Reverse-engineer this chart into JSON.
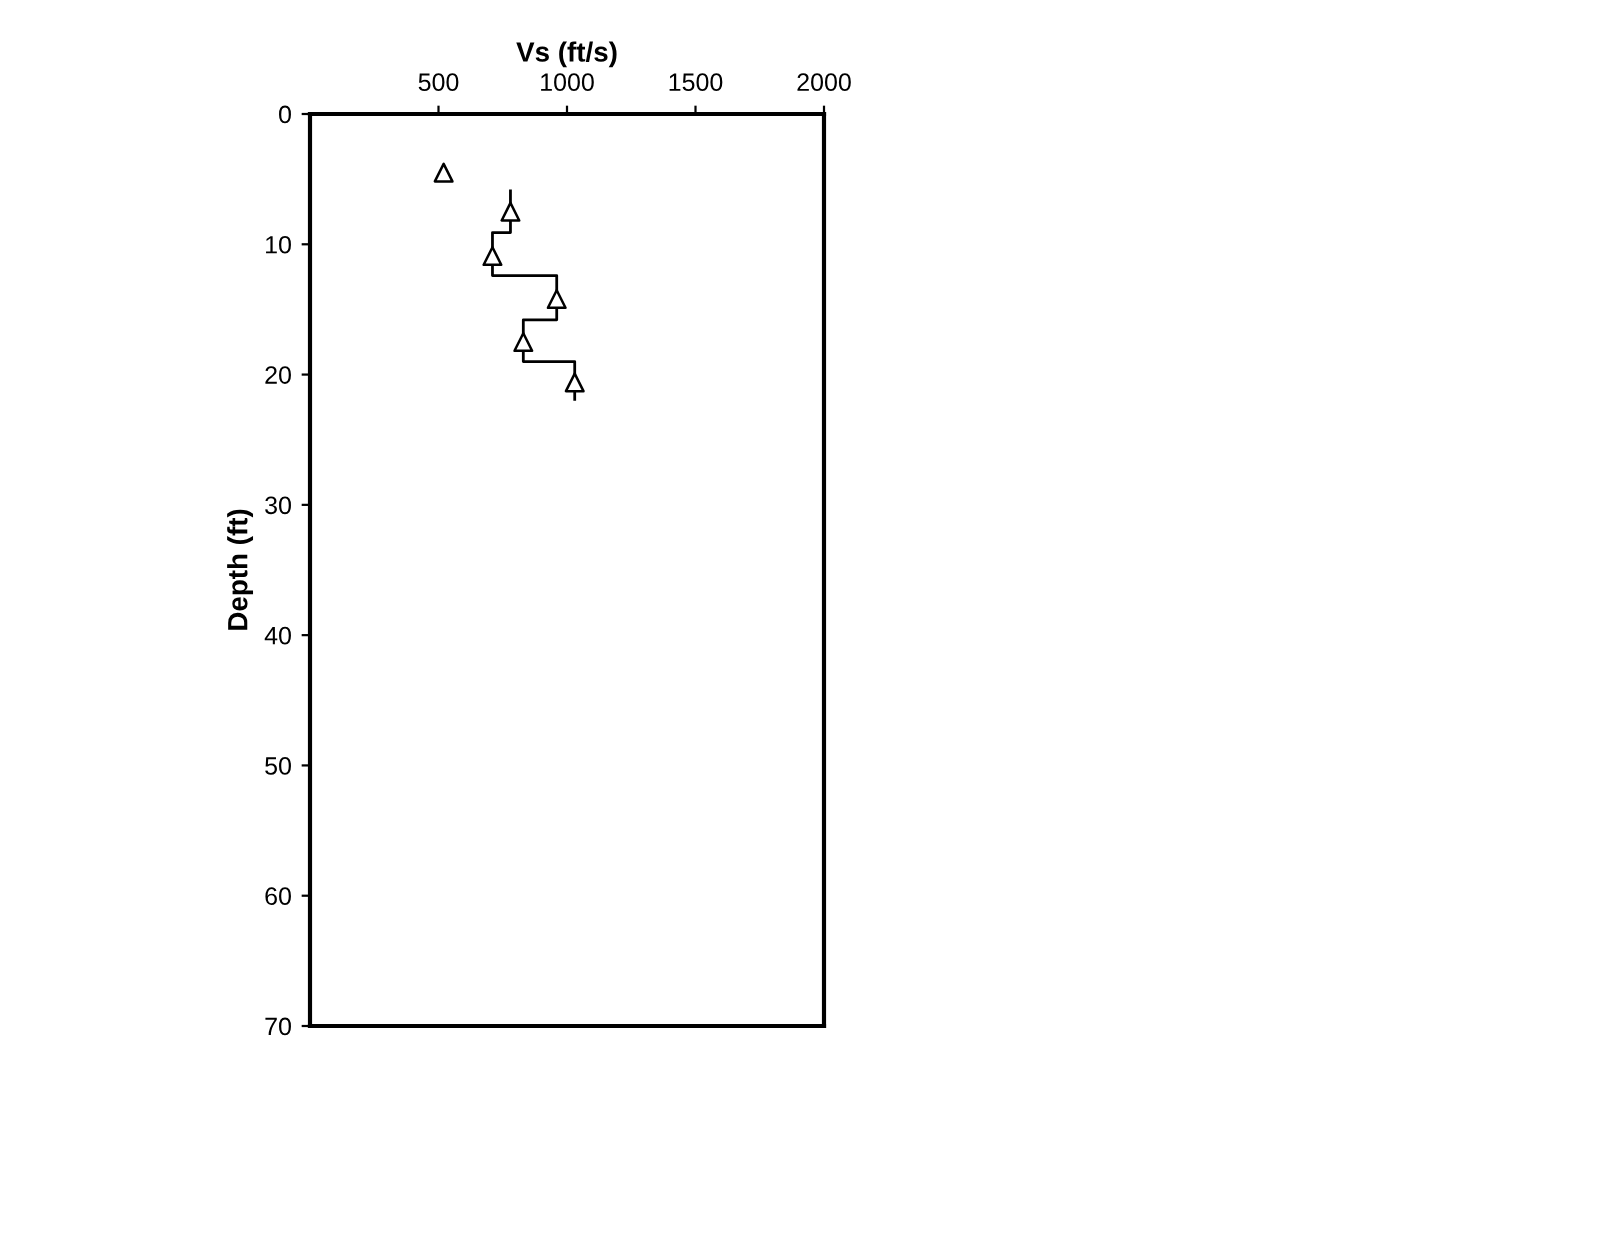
{
  "chart_data": {
    "type": "scatter",
    "xlabel": "Vs (ft/s)",
    "ylabel": "Depth (ft)",
    "xlim": [
      0,
      2000
    ],
    "xticks": [
      500,
      1000,
      1500,
      2000
    ],
    "ylim": [
      70,
      0
    ],
    "yticks": [
      0,
      10,
      20,
      30,
      40,
      50,
      60,
      70
    ],
    "grid": false,
    "series": [
      {
        "marker": "triangle",
        "color": "#000000",
        "x": [
          520,
          780,
          710,
          960,
          830,
          1030
        ],
        "values": [
          4.5,
          7.5,
          10.9,
          14.2,
          17.5,
          20.6
        ]
      },
      {
        "type": "line",
        "marker": "none",
        "line_style": "solid",
        "color": "#000000",
        "x": [
          780,
          780,
          710,
          710,
          960,
          960,
          830,
          830,
          1030,
          1030
        ],
        "values": [
          5.9,
          9.1,
          9.1,
          12.4,
          12.4,
          15.8,
          15.8,
          19.0,
          19.0,
          21.9
        ]
      }
    ]
  }
}
